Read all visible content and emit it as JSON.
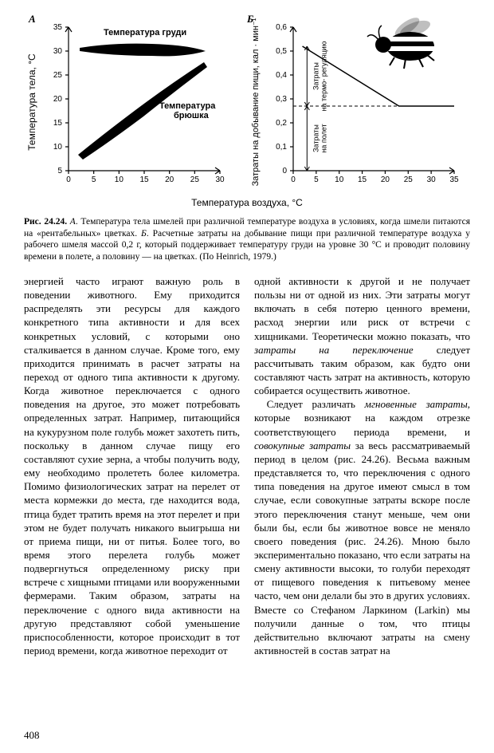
{
  "panelA": {
    "label": "А",
    "type": "scatter",
    "series1_label": "Температура груди",
    "series2_label": "Температура брюшка",
    "yaxis_label": "Температура тела, °С",
    "xlim": [
      0,
      30
    ],
    "ylim": [
      5,
      35
    ],
    "xticks": [
      0,
      5,
      10,
      15,
      20,
      25,
      30
    ],
    "yticks": [
      5,
      10,
      15,
      20,
      25,
      30,
      35
    ],
    "tick_fontsize": 11,
    "label_fontsize": 12,
    "grid_color": "#000000",
    "plot_bg": "#ffffff",
    "series1": {
      "type": "blob",
      "points": [
        [
          2,
          31.5
        ],
        [
          5,
          32.3
        ],
        [
          8,
          33
        ],
        [
          12,
          33.2
        ],
        [
          16,
          33
        ],
        [
          20,
          32.8
        ],
        [
          24,
          32.5
        ],
        [
          27,
          31.8
        ]
      ],
      "color": "#000000"
    },
    "series2": {
      "type": "blob",
      "points": [
        [
          2,
          8
        ],
        [
          5,
          11
        ],
        [
          8,
          14
        ],
        [
          12,
          17
        ],
        [
          16,
          20
        ],
        [
          20,
          23
        ],
        [
          24,
          26
        ],
        [
          27,
          28.5
        ]
      ],
      "color": "#000000"
    }
  },
  "panelB": {
    "label": "Б",
    "type": "line",
    "yaxis_label": "Затраты на добывание пищи, кал · мин⁻¹",
    "label_right1": "Затраты на термо- регуляцию",
    "label_right2": "Затраты на полет",
    "xlim": [
      0,
      35
    ],
    "ylim": [
      0,
      0.6
    ],
    "xticks": [
      0,
      5,
      10,
      15,
      20,
      25,
      30,
      35
    ],
    "yticks": [
      0,
      0.1,
      0.2,
      0.3,
      0.4,
      0.5,
      0.6
    ],
    "tick_fontsize": 11,
    "label_fontsize": 12,
    "line_color": "#000000",
    "line": [
      [
        2,
        0.52
      ],
      [
        23,
        0.27
      ],
      [
        35,
        0.27
      ]
    ],
    "dashed_y": 0.27,
    "grid_color": "#000000",
    "plot_bg": "#ffffff"
  },
  "xaxis_shared_label": "Температура воздуха, °С",
  "caption": {
    "fig_label": "Рис. 24.24.",
    "partA": "А",
    "partB": "Б",
    "text_a": "Температура тела шмелей при различной температуре воздуха в условиях, когда шмели питаются на «рентабельных» цветках.",
    "text_b": "Расчетные затраты на добывание пищи при различной температуре воздуха у рабочего шмеля массой 0,2 г, который поддерживает температуру груди на уровне 30 °С и проводит половину времени в полете, а половину — на цветках. (По Heinrich, 1979.)"
  },
  "body": {
    "col1_p1": "энергией часто играют важную роль в поведении животного. Ему приходится распределять эти ресурсы для каждого конкретного типа активности и для всех конкретных условий, с которыми оно сталкивается в данном случае. Кроме того, ему приходится принимать в расчет затраты на переход от одного типа активности к другому. Когда животное переключается с одного поведения на другое, это может потребовать определенных затрат. Например, питающийся на кукурузном поле голубь может захотеть пить, поскольку в данном случае пищу его составляют сухие зерна, а чтобы получить воду, ему необходимо пролететь более километра. Помимо физиологических затрат на перелет от места кормежки до места, где находится вода, птица будет тратить время на этот перелет и при этом не будет получать никакого выигрыша ни от приема пищи, ни от питья. Более того, во время этого перелета голубь может подвергнуться определенному риску при встрече с хищными птицами или вооруженными фермерами. Таким образом, затраты на переключение с одного вида активности на другую представляют собой уменьшение приспособленности, которое происходит в тот период времени, когда животное переходит от",
    "col2_p1_lead": "одной активности к другой и не получает пользы ни от одной из них. Эти затраты могут включать в себя потерю ценного времени, расход энергии или риск от встречи с хищниками. Теоретически можно показать, что ",
    "col2_p1_em": "затраты на переключение",
    "col2_p1_tail": " следует рассчитывать таким образом, как будто они составляют часть затрат на активность, которую собирается осуществить животное.",
    "col2_p2_lead": "Следует различать ",
    "col2_p2_em1": "мгновенные затраты",
    "col2_p2_mid1": ", которые возникают на каждом отрезке соответствующего периода времени, и ",
    "col2_p2_em2": "совокупные затраты",
    "col2_p2_tail": " за весь рассматриваемый период в целом (рис. 24.26). Весьма важным представляется то, что переключения с одного типа поведения на другое имеют смысл в том случае, если совокупные затраты вскоре после этого переключения станут меньше, чем они были бы, если бы животное вовсе не меняло своего поведения (рис. 24.26). Мною было экспериментально показано, что если затраты на смену активности высоки, то голуби переходят от пищевого поведения к питьевому менее часто, чем они делали бы это в других условиях. Вместе со Стефаном Ларкином (Larkin) мы получили данные о том, что птицы действительно включают затраты на смену активностей в состав затрат на"
  },
  "page_number": "408",
  "colors": {
    "text": "#000000",
    "background": "#ffffff",
    "axis": "#000000"
  }
}
